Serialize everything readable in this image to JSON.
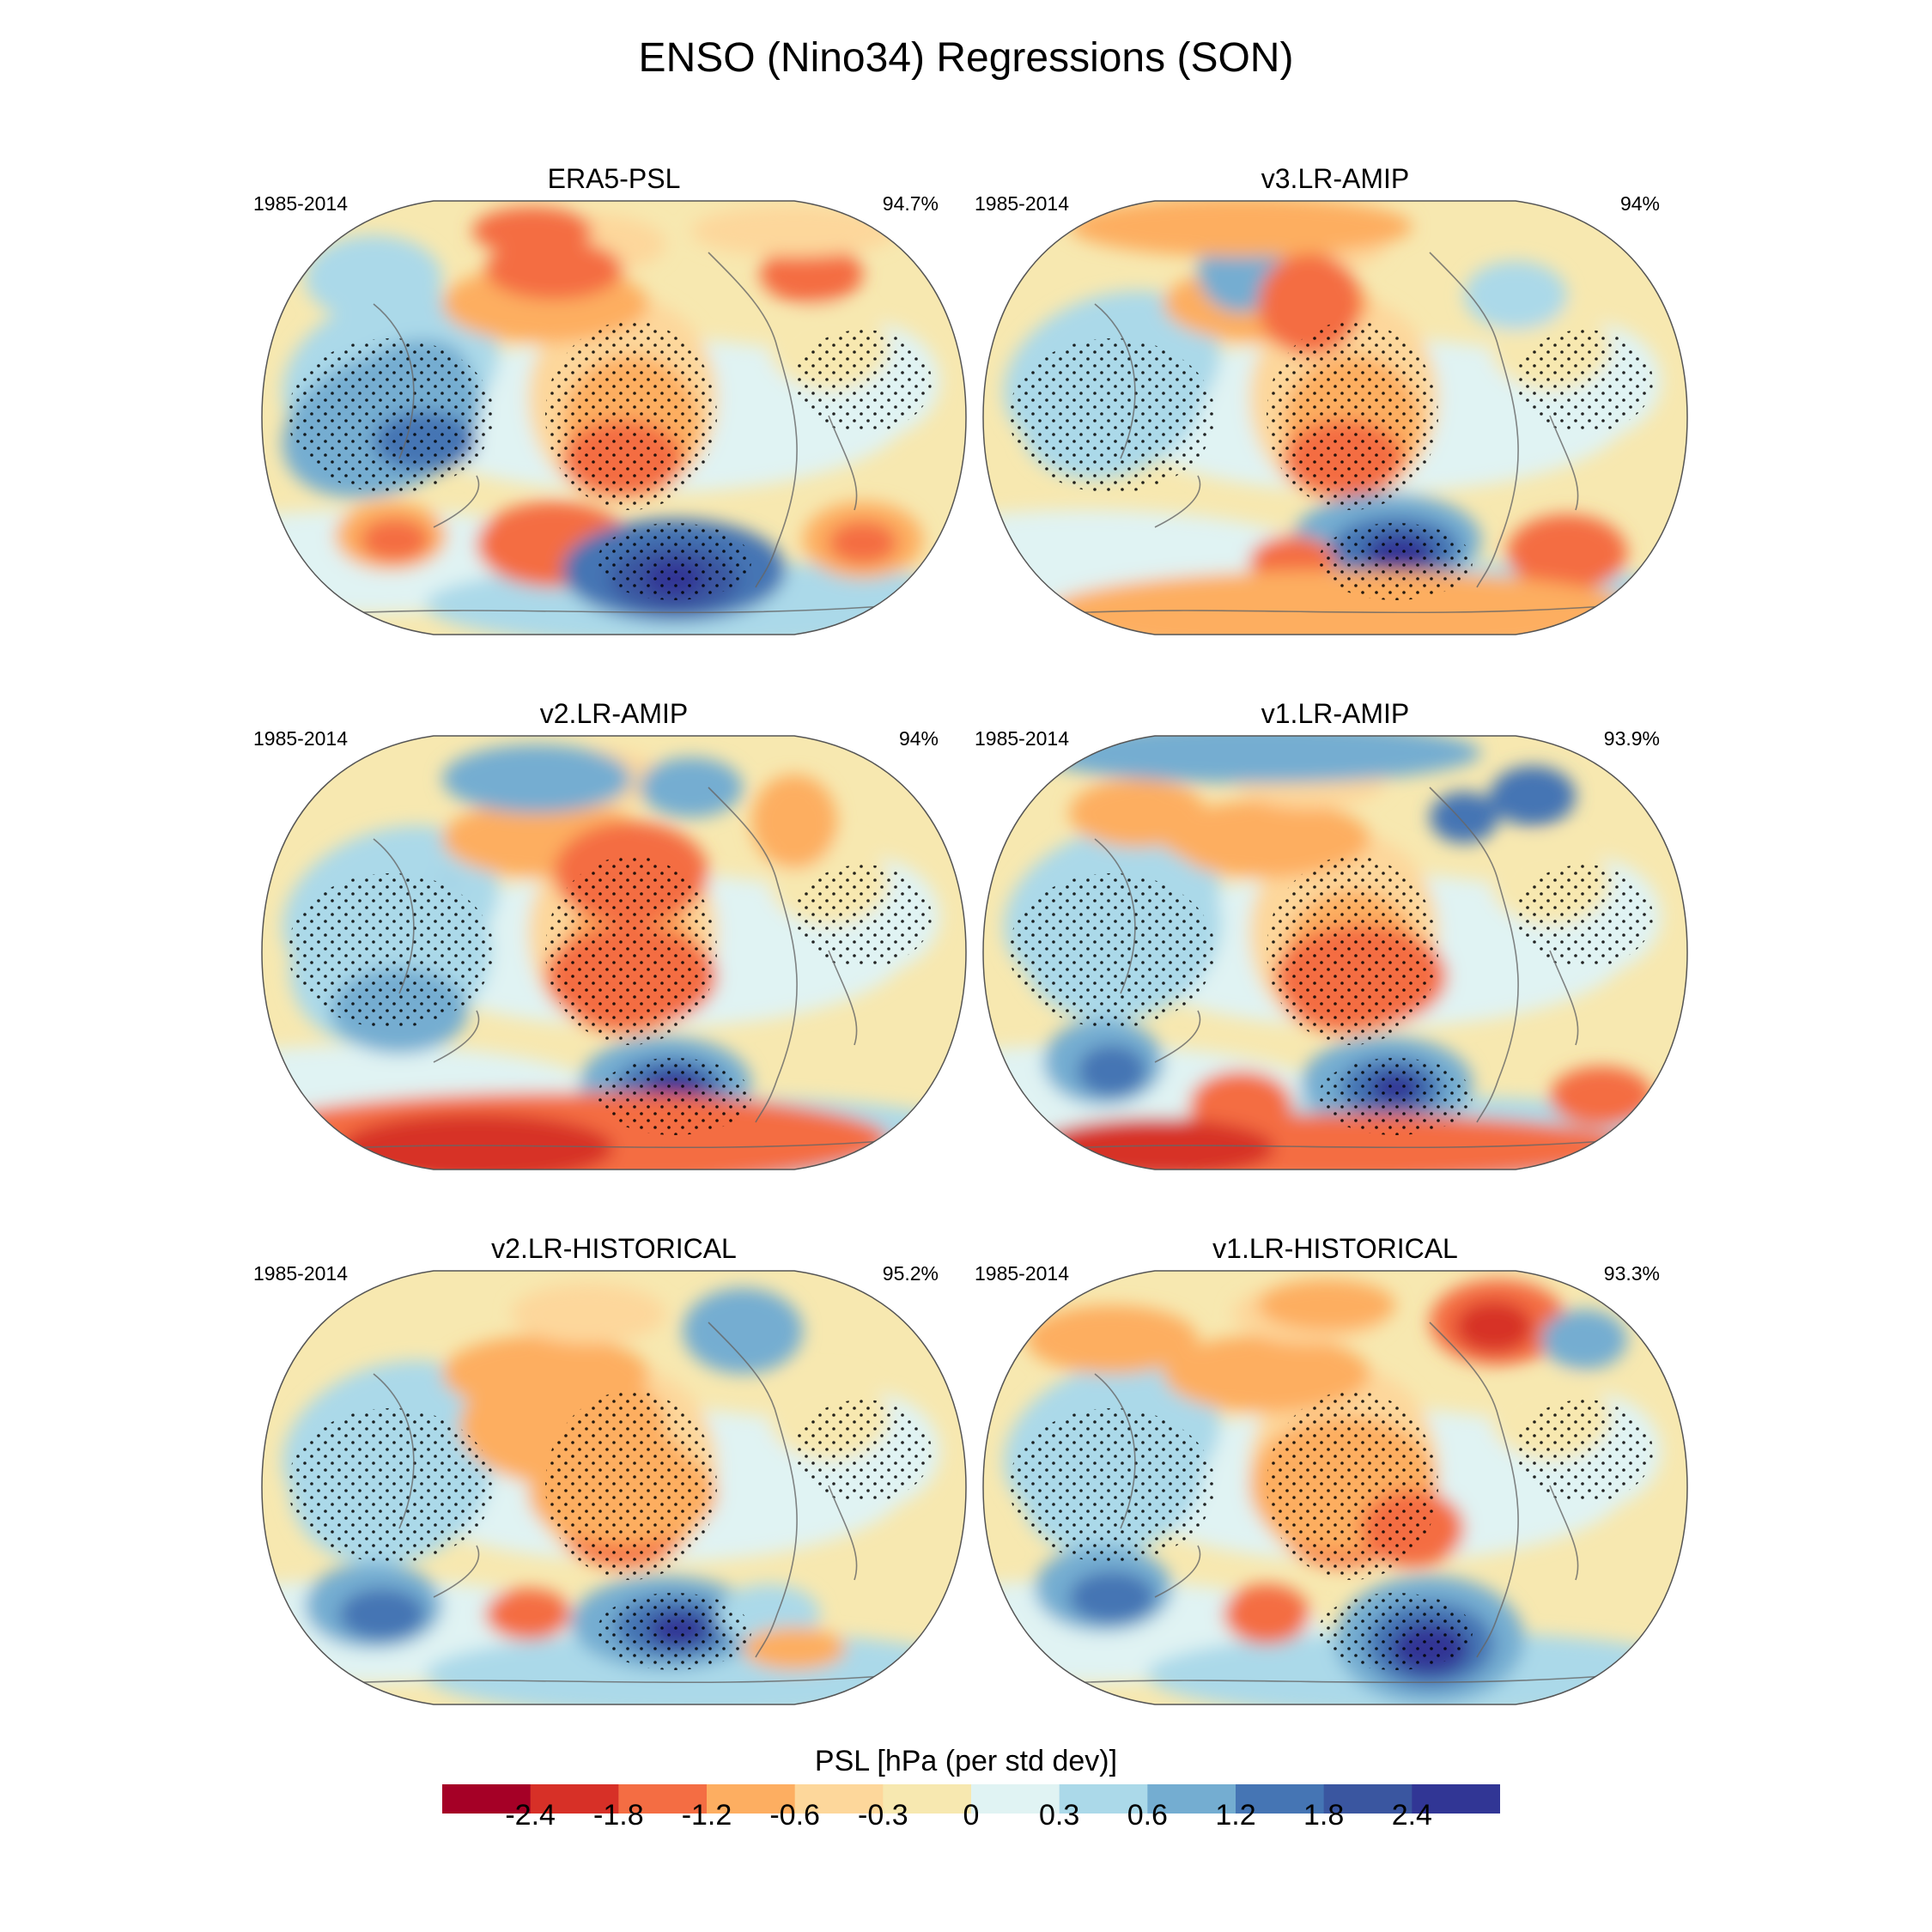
{
  "title": "ENSO (Nino34) Regressions (SON)",
  "colorbar": {
    "label": "PSL [hPa (per std dev)]",
    "colors": [
      "#a50026",
      "#d73027",
      "#f46d43",
      "#fdae61",
      "#fdd79b",
      "#f7e8b0",
      "#e0f3f3",
      "#abd9e9",
      "#74add1",
      "#4575b4",
      "#3a56a0",
      "#313695"
    ],
    "ticks": [
      "-2.4",
      "-1.8",
      "-1.2",
      "-0.6",
      "-0.3",
      "0",
      "0.3",
      "0.6",
      "1.2",
      "1.8",
      "2.4"
    ]
  },
  "panels": [
    {
      "title": "ERA5-PSL",
      "period": "1985-2014",
      "pattern_corr": "94.7%"
    },
    {
      "title": "v3.LR-AMIP",
      "period": "1985-2014",
      "pattern_corr": "94%"
    },
    {
      "title": "v2.LR-AMIP",
      "period": "1985-2014",
      "pattern_corr": "94%"
    },
    {
      "title": "v1.LR-AMIP",
      "period": "1985-2014",
      "pattern_corr": "93.9%"
    },
    {
      "title": "v2.LR-HISTORICAL",
      "period": "1985-2014",
      "pattern_corr": "95.2%"
    },
    {
      "title": "v1.LR-HISTORICAL",
      "period": "1985-2014",
      "pattern_corr": "93.3%"
    }
  ],
  "chart_data": {
    "type": "heatmap",
    "title": "ENSO (Nino34) Regressions (SON)",
    "variable": "PSL",
    "units": "hPa (per std dev)",
    "levels": [
      -2.4,
      -1.8,
      -1.2,
      -0.6,
      -0.3,
      0,
      0.3,
      0.6,
      1.2,
      1.8,
      2.4
    ],
    "panels": [
      "ERA5-PSL",
      "v3.LR-AMIP",
      "v2.LR-AMIP",
      "v1.LR-AMIP",
      "v2.LR-HISTORICAL",
      "v1.LR-HISTORICAL"
    ]
  }
}
